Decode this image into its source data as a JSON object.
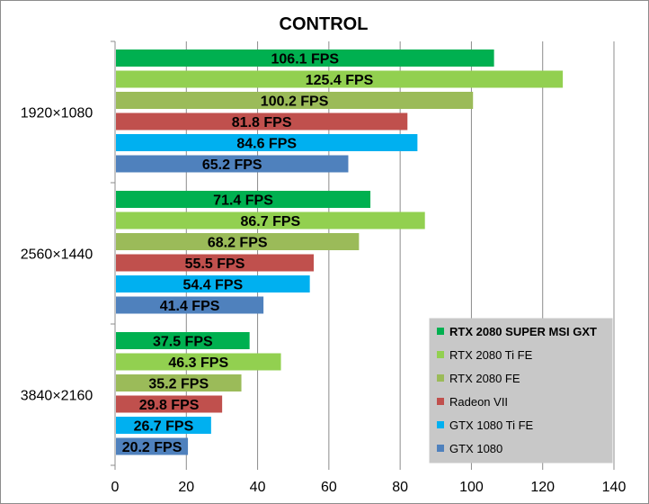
{
  "chart_data": {
    "type": "bar",
    "orientation": "horizontal",
    "title": "CONTROL",
    "xlabel": "",
    "ylabel": "",
    "xlim": [
      0,
      140
    ],
    "x_ticks": [
      0,
      20,
      40,
      60,
      80,
      100,
      120,
      140
    ],
    "grid": "vertical",
    "legend_position": "bottom-right",
    "categories": [
      "1920×1080",
      "2560×1440",
      "3840×2160"
    ],
    "value_suffix": " FPS",
    "series": [
      {
        "name": "RTX 2080 SUPER MSI GXT",
        "color": "#00b050",
        "values": [
          106.1,
          71.4,
          37.5
        ]
      },
      {
        "name": "RTX 2080 Ti FE",
        "color": "#92d050",
        "values": [
          125.4,
          86.7,
          46.3
        ]
      },
      {
        "name": "RTX 2080 FE",
        "color": "#9bbb59",
        "values": [
          100.2,
          68.2,
          35.2
        ]
      },
      {
        "name": "Radeon VII",
        "color": "#c0504d",
        "values": [
          81.8,
          55.5,
          29.8
        ]
      },
      {
        "name": "GTX 1080 Ti FE",
        "color": "#00b0f0",
        "values": [
          84.6,
          54.4,
          26.7
        ]
      },
      {
        "name": "GTX 1080",
        "color": "#4f81bd",
        "values": [
          65.2,
          41.4,
          20.2
        ]
      }
    ]
  }
}
